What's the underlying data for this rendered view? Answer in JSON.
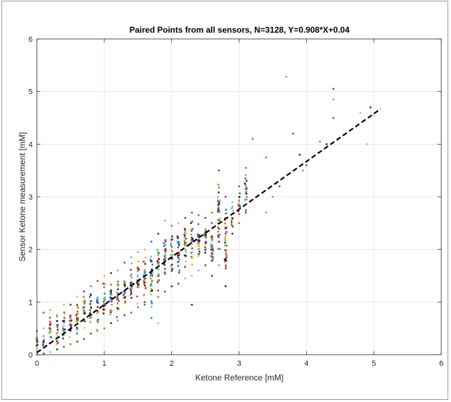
{
  "chart_data": {
    "type": "scatter",
    "title": "Paired Points from all sensors, N=3128, Y=0.908*X+0.04",
    "xlabel": "Ketone Reference [mM]",
    "ylabel": "Sensor Ketone measurement [mM]",
    "xlim": [
      0,
      6
    ],
    "ylim": [
      0,
      6
    ],
    "x_ticks": [
      "0",
      "1",
      "2",
      "3",
      "4",
      "5",
      "6"
    ],
    "y_ticks": [
      "0",
      "1",
      "2",
      "3",
      "4",
      "5",
      "6"
    ],
    "grid": true,
    "legend": "none",
    "fit_line": {
      "slope": 0.908,
      "intercept": 0.04,
      "x_range": [
        0,
        5.1
      ],
      "style": "dashed",
      "color": "#000000"
    },
    "series_colors": [
      "#0072BD",
      "#D95319",
      "#EDB120",
      "#7E2F8E",
      "#77AC30",
      "#4DBEEE",
      "#A2142F",
      "#222222"
    ],
    "point_groups": [
      {
        "x": 0.0,
        "y_min": 0.0,
        "y_max": 0.45
      },
      {
        "x": 0.1,
        "y_min": 0.02,
        "y_max": 0.5
      },
      {
        "x": 0.2,
        "y_min": 0.05,
        "y_max": 0.85
      },
      {
        "x": 0.3,
        "y_min": 0.1,
        "y_max": 0.75
      },
      {
        "x": 0.4,
        "y_min": 0.15,
        "y_max": 0.95
      },
      {
        "x": 0.5,
        "y_min": 0.2,
        "y_max": 0.95
      },
      {
        "x": 0.6,
        "y_min": 0.25,
        "y_max": 1.1
      },
      {
        "x": 0.7,
        "y_min": 0.3,
        "y_max": 1.2
      },
      {
        "x": 0.8,
        "y_min": 0.4,
        "y_max": 1.3
      },
      {
        "x": 0.9,
        "y_min": 0.45,
        "y_max": 1.4
      },
      {
        "x": 1.0,
        "y_min": 0.5,
        "y_max": 1.5
      },
      {
        "x": 1.1,
        "y_min": 0.6,
        "y_max": 1.55
      },
      {
        "x": 1.2,
        "y_min": 0.65,
        "y_max": 1.6
      },
      {
        "x": 1.3,
        "y_min": 0.75,
        "y_max": 1.75
      },
      {
        "x": 1.4,
        "y_min": 0.8,
        "y_max": 1.85
      },
      {
        "x": 1.5,
        "y_min": 0.9,
        "y_max": 1.95
      },
      {
        "x": 1.6,
        "y_min": 1.0,
        "y_max": 2.0
      },
      {
        "x": 1.7,
        "y_min": 0.7,
        "y_max": 2.15
      },
      {
        "x": 1.8,
        "y_min": 1.1,
        "y_max": 2.3
      },
      {
        "x": 1.9,
        "y_min": 1.2,
        "y_max": 2.55
      },
      {
        "x": 2.0,
        "y_min": 1.3,
        "y_max": 2.45
      },
      {
        "x": 2.1,
        "y_min": 1.35,
        "y_max": 2.5
      },
      {
        "x": 2.2,
        "y_min": 1.45,
        "y_max": 2.6
      },
      {
        "x": 2.3,
        "y_min": 1.5,
        "y_max": 2.7
      },
      {
        "x": 2.4,
        "y_min": 1.6,
        "y_max": 2.65
      },
      {
        "x": 2.5,
        "y_min": 1.7,
        "y_max": 2.6
      },
      {
        "x": 2.6,
        "y_min": 1.5,
        "y_max": 2.7
      },
      {
        "x": 2.7,
        "y_min": 1.7,
        "y_max": 3.5
      },
      {
        "x": 2.8,
        "y_min": 1.3,
        "y_max": 3.0
      },
      {
        "x": 2.9,
        "y_min": 2.3,
        "y_max": 2.9
      },
      {
        "x": 3.0,
        "y_min": 2.5,
        "y_max": 3.2
      },
      {
        "x": 3.1,
        "y_min": 2.7,
        "y_max": 3.55
      }
    ],
    "outliers": [
      [
        0.1,
        0.8
      ],
      [
        0.2,
        0.85
      ],
      [
        0.3,
        0.72
      ],
      [
        0.5,
        0.95
      ],
      [
        1.6,
        0.95
      ],
      [
        1.8,
        0.6
      ],
      [
        2.3,
        0.95
      ],
      [
        2.6,
        1.5
      ],
      [
        2.8,
        1.3
      ],
      [
        3.2,
        4.1
      ],
      [
        3.4,
        3.75
      ],
      [
        3.4,
        2.7
      ],
      [
        3.5,
        3.0
      ],
      [
        3.6,
        3.2
      ],
      [
        3.7,
        5.28
      ],
      [
        3.8,
        4.2
      ],
      [
        3.9,
        3.8
      ],
      [
        3.95,
        3.5
      ],
      [
        4.0,
        3.6
      ],
      [
        4.2,
        4.05
      ],
      [
        4.3,
        4.0
      ],
      [
        4.4,
        5.05
      ],
      [
        4.4,
        4.85
      ],
      [
        4.4,
        4.5
      ],
      [
        4.8,
        4.6
      ],
      [
        4.9,
        4.0
      ],
      [
        4.95,
        4.7
      ],
      [
        5.0,
        4.55
      ]
    ]
  }
}
